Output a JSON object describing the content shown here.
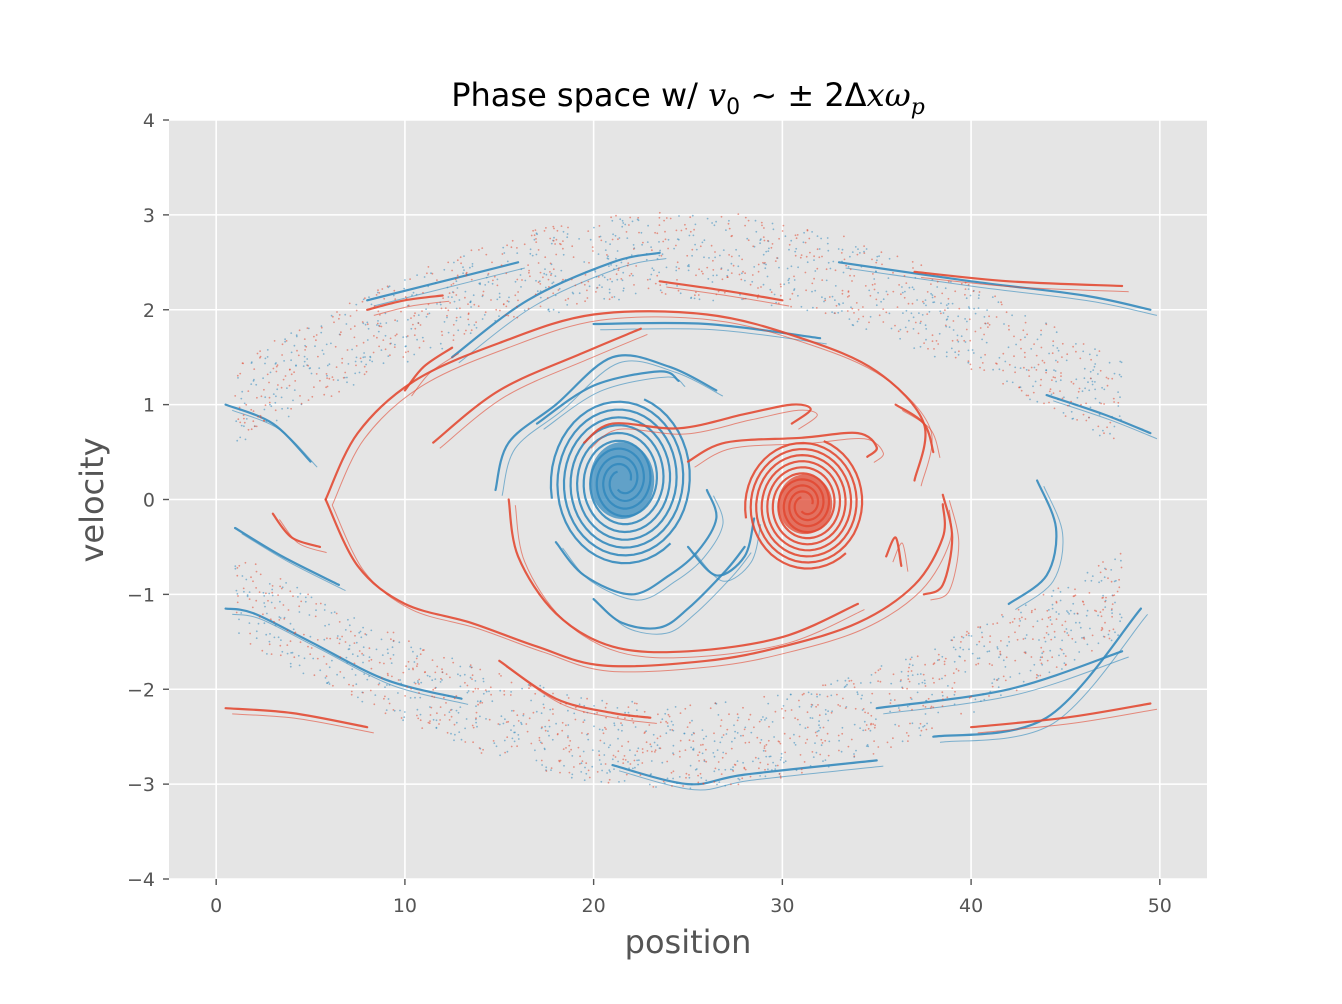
{
  "chart_data": {
    "type": "scatter",
    "title": {
      "prefix": "Phase space w/ ",
      "v": "v",
      "v_sub": "0",
      "tilde": " ~ ",
      "pm": "± 2Δ",
      "x": "x",
      "omega": "ω",
      "omega_sub": "p"
    },
    "xlabel": "position",
    "ylabel": "velocity",
    "xlim": [
      -2.5,
      52.5
    ],
    "ylim": [
      -4,
      4
    ],
    "xticks": [
      0,
      10,
      20,
      30,
      40,
      50
    ],
    "yticks": [
      4,
      3,
      2,
      1,
      0,
      -1,
      -2,
      -3,
      -4
    ],
    "xtick_labels": [
      "0",
      "10",
      "20",
      "30",
      "40",
      "50"
    ],
    "ytick_labels": [
      "4",
      "3",
      "2",
      "1",
      "0",
      "−1",
      "−2",
      "−3",
      "−4"
    ],
    "grid": true,
    "style": "ggplot",
    "colors": {
      "background": "#e5e5e5",
      "grid": "#ffffff",
      "series_a": "#348abd",
      "series_b": "#e24a33"
    },
    "series": [
      {
        "color_key": "series_a",
        "vortex_center": [
          21.5,
          0.2
        ],
        "vortex_radius_x": 3.8,
        "vortex_radius_y": 0.9,
        "curves": [
          [
            [
              26.5,
              1.15
            ],
            [
              24.0,
              1.4
            ],
            [
              21.0,
              1.5
            ],
            [
              18.0,
              1.0
            ],
            [
              15.5,
              0.6
            ],
            [
              14.8,
              0.1
            ]
          ],
          [
            [
              17.0,
              0.8
            ],
            [
              20.0,
              1.2
            ],
            [
              23.5,
              1.35
            ],
            [
              24.5,
              1.25
            ]
          ],
          [
            [
              18.0,
              -0.45
            ],
            [
              19.5,
              -0.8
            ],
            [
              22.0,
              -1.0
            ],
            [
              24.0,
              -0.8
            ],
            [
              25.5,
              -0.55
            ],
            [
              26.5,
              -0.2
            ],
            [
              26.0,
              0.1
            ]
          ],
          [
            [
              20.0,
              -1.05
            ],
            [
              21.5,
              -1.3
            ],
            [
              23.5,
              -1.35
            ],
            [
              25.0,
              -1.15
            ],
            [
              27.0,
              -0.75
            ],
            [
              28.0,
              -0.5
            ]
          ],
          [
            [
              25.0,
              -0.5
            ],
            [
              26.5,
              -0.8
            ],
            [
              28.0,
              -0.6
            ],
            [
              28.5,
              -0.2
            ]
          ],
          [
            [
              43.5,
              0.2
            ],
            [
              44.5,
              -0.3
            ],
            [
              44.0,
              -0.8
            ],
            [
              42.0,
              -1.1
            ]
          ],
          [
            [
              12.5,
              1.5
            ],
            [
              16.5,
              2.1
            ],
            [
              21.0,
              2.5
            ],
            [
              23.5,
              2.6
            ]
          ],
          [
            [
              20.0,
              1.85
            ],
            [
              26.0,
              1.85
            ],
            [
              32.0,
              1.7
            ]
          ],
          [
            [
              33.0,
              2.5
            ],
            [
              40.0,
              2.3
            ],
            [
              46.0,
              2.15
            ],
            [
              49.5,
              2.0
            ]
          ],
          [
            [
              21.0,
              -2.8
            ],
            [
              25.0,
              -3.0
            ],
            [
              28.0,
              -2.9
            ],
            [
              35.0,
              -2.75
            ]
          ],
          [
            [
              38.0,
              -2.5
            ],
            [
              44.0,
              -2.3
            ],
            [
              49.0,
              -1.15
            ]
          ],
          [
            [
              0.5,
              -1.15
            ],
            [
              2.0,
              -1.2
            ],
            [
              5.0,
              -1.5
            ],
            [
              9.0,
              -1.9
            ],
            [
              13.0,
              -2.1
            ]
          ],
          [
            [
              0.5,
              1.0
            ],
            [
              3.0,
              0.8
            ],
            [
              5.0,
              0.4
            ]
          ],
          [
            [
              1.0,
              -0.3
            ],
            [
              3.5,
              -0.6
            ],
            [
              6.5,
              -0.9
            ]
          ],
          [
            [
              35.0,
              -2.2
            ],
            [
              42.0,
              -2.0
            ],
            [
              48.0,
              -1.6
            ]
          ],
          [
            [
              8.0,
              2.1
            ],
            [
              12.0,
              2.3
            ],
            [
              16.0,
              2.5
            ]
          ],
          [
            [
              44.0,
              1.1
            ],
            [
              47.0,
              0.9
            ],
            [
              49.5,
              0.7
            ]
          ]
        ],
        "scatter_bands": [
          [
            1.0,
            48.0,
            2.55,
            1.0,
            0.45
          ],
          [
            1.0,
            48.0,
            -2.6,
            -1.0,
            0.45
          ]
        ]
      },
      {
        "color_key": "series_b",
        "vortex_center": [
          31.2,
          -0.05
        ],
        "vortex_radius_x": 3.2,
        "vortex_radius_y": 0.7,
        "curves": [
          [
            [
              5.8,
              0.0
            ],
            [
              7.5,
              0.7
            ],
            [
              10.5,
              1.25
            ],
            [
              15.0,
              1.65
            ],
            [
              20.0,
              1.95
            ],
            [
              26.0,
              1.95
            ],
            [
              31.0,
              1.7
            ],
            [
              35.0,
              1.35
            ],
            [
              37.5,
              0.8
            ],
            [
              37.0,
              0.2
            ]
          ],
          [
            [
              11.5,
              0.6
            ],
            [
              15.0,
              1.15
            ],
            [
              19.5,
              1.55
            ],
            [
              22.5,
              1.8
            ]
          ],
          [
            [
              5.8,
              0.0
            ],
            [
              7.5,
              -0.7
            ],
            [
              10.0,
              -1.1
            ],
            [
              13.5,
              -1.3
            ],
            [
              17.0,
              -1.55
            ],
            [
              20.5,
              -1.75
            ],
            [
              26.0,
              -1.7
            ],
            [
              30.0,
              -1.55
            ],
            [
              34.0,
              -1.3
            ],
            [
              37.0,
              -0.9
            ],
            [
              38.5,
              -0.4
            ],
            [
              38.5,
              -0.05
            ]
          ],
          [
            [
              15.5,
              0.0
            ],
            [
              16.0,
              -0.6
            ],
            [
              18.0,
              -1.2
            ],
            [
              21.0,
              -1.55
            ],
            [
              25.0,
              -1.6
            ],
            [
              30.0,
              -1.45
            ],
            [
              34.0,
              -1.1
            ]
          ],
          [
            [
              19.5,
              0.6
            ],
            [
              21.0,
              0.8
            ],
            [
              24.5,
              0.75
            ],
            [
              28.0,
              0.9
            ],
            [
              30.5,
              1.0
            ],
            [
              31.5,
              0.95
            ],
            [
              30.5,
              0.8
            ]
          ],
          [
            [
              25.0,
              0.4
            ],
            [
              27.0,
              0.6
            ],
            [
              31.0,
              0.65
            ],
            [
              34.0,
              0.7
            ],
            [
              35.0,
              0.55
            ],
            [
              34.5,
              0.45
            ]
          ],
          [
            [
              38.5,
              0.05
            ],
            [
              39.0,
              -0.4
            ],
            [
              38.5,
              -0.9
            ],
            [
              37.5,
              -1.0
            ]
          ],
          [
            [
              36.0,
              1.0
            ],
            [
              37.5,
              0.8
            ],
            [
              38.0,
              0.5
            ]
          ],
          [
            [
              35.5,
              -0.6
            ],
            [
              36.0,
              -0.4
            ],
            [
              36.3,
              -0.7
            ]
          ],
          [
            [
              15.0,
              -1.7
            ],
            [
              18.0,
              -2.1
            ],
            [
              21.0,
              -2.25
            ],
            [
              23.0,
              -2.3
            ]
          ],
          [
            [
              23.5,
              2.3
            ],
            [
              27.0,
              2.2
            ],
            [
              30.0,
              2.1
            ]
          ],
          [
            [
              10.0,
              1.15
            ],
            [
              11.0,
              1.4
            ],
            [
              12.5,
              1.6
            ]
          ],
          [
            [
              3.0,
              -0.15
            ],
            [
              4.0,
              -0.4
            ],
            [
              5.5,
              -0.5
            ]
          ],
          [
            [
              0.5,
              -2.2
            ],
            [
              4.0,
              -2.25
            ],
            [
              8.0,
              -2.4
            ]
          ],
          [
            [
              8.0,
              2.0
            ],
            [
              10.0,
              2.1
            ],
            [
              12.0,
              2.15
            ]
          ],
          [
            [
              37.0,
              2.4
            ],
            [
              42.0,
              2.3
            ],
            [
              48.0,
              2.25
            ]
          ],
          [
            [
              40.0,
              -2.4
            ],
            [
              45.0,
              -2.3
            ],
            [
              49.5,
              -2.15
            ]
          ]
        ],
        "scatter_bands": [
          [
            1.0,
            48.0,
            2.6,
            1.0,
            0.45
          ],
          [
            1.0,
            48.0,
            -2.6,
            -1.0,
            0.45
          ]
        ]
      }
    ]
  }
}
